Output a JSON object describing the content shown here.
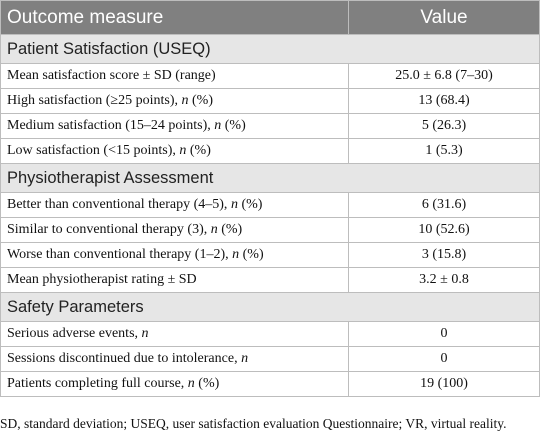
{
  "table": {
    "columns": [
      "Outcome measure",
      "Value"
    ],
    "sections": [
      {
        "title": "Patient Satisfaction (USEQ)",
        "rows": [
          {
            "label": [
              "Mean satisfaction score ± SD (range)"
            ],
            "value": "25.0 ± 6.8 (7–30)"
          },
          {
            "label": [
              "High satisfaction (≥25 points), ",
              "n",
              " (%)"
            ],
            "value": "13 (68.4)"
          },
          {
            "label": [
              "Medium satisfaction (15–24 points), ",
              "n",
              " (%)"
            ],
            "value": "5 (26.3)"
          },
          {
            "label": [
              "Low satisfaction (<15 points), ",
              "n",
              " (%)"
            ],
            "value": "1 (5.3)"
          }
        ]
      },
      {
        "title": "Physiotherapist Assessment",
        "rows": [
          {
            "label": [
              "Better than conventional therapy (4–5), ",
              "n",
              " (%)"
            ],
            "value": "6 (31.6)"
          },
          {
            "label": [
              "Similar to conventional therapy (3), ",
              "n",
              " (%)"
            ],
            "value": "10 (52.6)"
          },
          {
            "label": [
              "Worse than conventional therapy (1–2), ",
              "n",
              " (%)"
            ],
            "value": "3 (15.8)"
          },
          {
            "label": [
              "Mean physiotherapist rating ± SD"
            ],
            "value": "3.2 ± 0.8"
          }
        ]
      },
      {
        "title": "Safety Parameters",
        "rows": [
          {
            "label": [
              "Serious adverse events, ",
              "n"
            ],
            "value": "0"
          },
          {
            "label": [
              "Sessions discontinued due to intolerance, ",
              "n"
            ],
            "value": "0"
          },
          {
            "label": [
              "Patients completing full course, ",
              "n",
              " (%)"
            ],
            "value": "19 (100)"
          }
        ]
      }
    ]
  },
  "footnote": "SD, standard deviation; USEQ, user satisfaction evaluation Questionnaire; VR, virtual reality."
}
